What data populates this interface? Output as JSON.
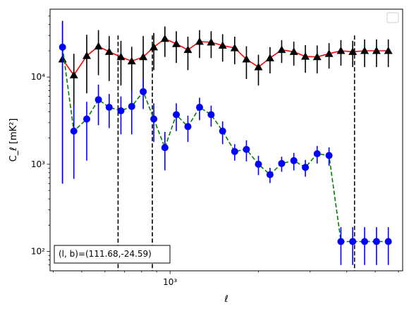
{
  "chart_data": {
    "type": "scatter",
    "x_scale": "log",
    "y_scale": "log",
    "xlim": [
      390,
      6200
    ],
    "ylim": [
      60,
      60000
    ],
    "xlabel": "ℓ",
    "ylabel": "C_ℓ  [mK²]",
    "x_ticks": [
      {
        "value": 1000,
        "label": "10³"
      }
    ],
    "y_ticks": [
      {
        "value": 100,
        "label": "10²"
      },
      {
        "value": 1000,
        "label": "10³"
      },
      {
        "value": 10000,
        "label": "10⁴"
      }
    ],
    "annotation": "(l, b)=(111.68,-24.59)",
    "vlines": [
      665,
      870,
      4250
    ],
    "legend": "top-right",
    "series": [
      {
        "color": "#ff0000",
        "marker": "triangle",
        "marker_color": "#000000",
        "line_style": "solid",
        "x": [
          430,
          470,
          520,
          570,
          620,
          680,
          740,
          810,
          880,
          960,
          1050,
          1150,
          1260,
          1380,
          1510,
          1660,
          1820,
          2000,
          2190,
          2400,
          2640,
          2890,
          3170,
          3480,
          3820,
          4190,
          4600,
          5050,
          5540
        ],
        "y": [
          16000,
          10500,
          17500,
          22500,
          19500,
          17000,
          15200,
          17000,
          22000,
          27500,
          24000,
          20500,
          25500,
          25000,
          23000,
          21500,
          16000,
          13000,
          16500,
          20500,
          19500,
          17200,
          17000,
          18500,
          20000,
          19500,
          20000,
          20000,
          20000
        ],
        "err_low": [
          15400,
          8000,
          11000,
          12000,
          10500,
          9000,
          8500,
          9500,
          10000,
          10500,
          9500,
          8500,
          9000,
          8500,
          8000,
          7500,
          6500,
          5000,
          5500,
          6000,
          6000,
          6000,
          6000,
          6000,
          6500,
          6500,
          7000,
          7000,
          7000
        ],
        "err_high": [
          28000,
          8000,
          13000,
          12000,
          10000,
          9000,
          7000,
          12500,
          10000,
          10500,
          9500,
          8500,
          9000,
          8500,
          8000,
          7500,
          6500,
          5000,
          5500,
          6000,
          6000,
          6000,
          6000,
          6000,
          6500,
          6500,
          7000,
          7000,
          7000
        ]
      },
      {
        "color": "#008000",
        "marker": "circle",
        "marker_color": "#0000ff",
        "line_style": "dashed",
        "x": [
          430,
          470,
          520,
          570,
          620,
          680,
          740,
          810,
          880,
          960,
          1050,
          1150,
          1260,
          1380,
          1510,
          1660,
          1820,
          2000,
          2190,
          2400,
          2640,
          2890,
          3170,
          3480,
          3820,
          4190,
          4600,
          5050,
          5540
        ],
        "y": [
          22000,
          2400,
          3300,
          5500,
          4500,
          4100,
          4600,
          6800,
          3300,
          1550,
          3700,
          2700,
          4500,
          3700,
          2400,
          1400,
          1480,
          1000,
          760,
          1020,
          1100,
          920,
          1320,
          1260,
          130,
          130,
          130,
          130,
          130
        ],
        "err_low": [
          21400,
          1720,
          2200,
          2700,
          1900,
          1900,
          2400,
          2500,
          1500,
          700,
          1300,
          900,
          1300,
          1000,
          700,
          300,
          400,
          250,
          150,
          200,
          250,
          200,
          300,
          300,
          60,
          60,
          60,
          60,
          60
        ],
        "err_high": [
          20000,
          2400,
          1900,
          2700,
          1900,
          1900,
          2400,
          3000,
          1700,
          800,
          1300,
          900,
          1300,
          1000,
          700,
          300,
          400,
          250,
          150,
          200,
          250,
          200,
          300,
          300,
          60,
          60,
          60,
          60,
          60
        ]
      }
    ]
  }
}
